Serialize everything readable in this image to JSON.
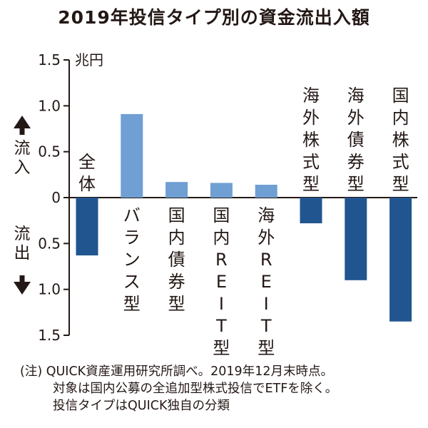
{
  "chart_data": {
    "type": "bar",
    "title": "2019年投信タイプ別の資金流出入額",
    "unit": "兆円",
    "inflow_label": "流入",
    "outflow_label": "流出",
    "ylim": [
      -1.5,
      1.5
    ],
    "ticks": [
      {
        "value": 1.5,
        "label": "1.5"
      },
      {
        "value": 1.0,
        "label": "1.0"
      },
      {
        "value": 0.5,
        "label": "0.5"
      },
      {
        "value": 0,
        "label": "0"
      },
      {
        "value": -0.5,
        "label": "0.5"
      },
      {
        "value": -1.0,
        "label": "1.0"
      },
      {
        "value": -1.5,
        "label": "1.5"
      }
    ],
    "categories": [
      "全体",
      "バランス型",
      "国内債券型",
      "国内REIT型",
      "海外REIT型",
      "海外株式型",
      "海外債券型",
      "国内株式型"
    ],
    "category_labels": [
      [
        "全",
        "体"
      ],
      [
        "バ",
        "ラ",
        "ン",
        "ス",
        "型"
      ],
      [
        "国",
        "内",
        "債",
        "券",
        "型"
      ],
      [
        "国",
        "内",
        "R",
        "E",
        "I",
        "T",
        "型"
      ],
      [
        "海",
        "外",
        "R",
        "E",
        "I",
        "T",
        "型"
      ],
      [
        "海",
        "外",
        "株",
        "式",
        "型"
      ],
      [
        "海",
        "外",
        "債",
        "券",
        "型"
      ],
      [
        "国",
        "内",
        "株",
        "式",
        "型"
      ]
    ],
    "values": [
      -0.63,
      0.91,
      0.17,
      0.16,
      0.14,
      -0.28,
      -0.9,
      -1.35
    ],
    "colors": {
      "positive": "#6f9fd3",
      "negative": "#21558f",
      "text": "#231815"
    }
  },
  "footnote": {
    "lines": [
      "(注) QUICK資産運用研究所調べ。2019年12月末時点。",
      "対象は国内公募の全追加型株式投信でETFを除く。",
      "投信タイプはQUICK独自の分類"
    ]
  }
}
